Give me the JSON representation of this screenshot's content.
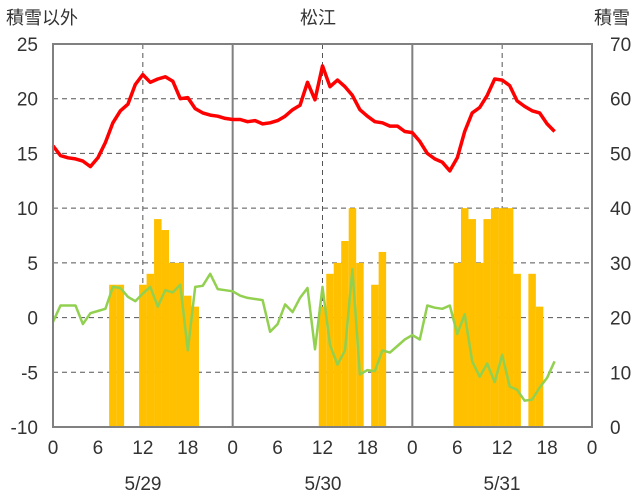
{
  "chart_data": {
    "type": "bar+line",
    "title": "松江",
    "left_axis_label": "積雪以外",
    "right_axis_label": "積雪",
    "left_ylim": [
      -10,
      25
    ],
    "left_ticks": [
      25,
      20,
      15,
      10,
      5,
      0,
      -5,
      -10
    ],
    "right_ylim": [
      0,
      70
    ],
    "right_ticks": [
      70,
      60,
      50,
      40,
      30,
      20,
      10,
      0
    ],
    "x_tick_labels": [
      "0",
      "6",
      "12",
      "18",
      "0",
      "6",
      "12",
      "18",
      "0",
      "6",
      "12",
      "18",
      "0"
    ],
    "x_hours_max": 72,
    "days": [
      "5/29",
      "5/30",
      "5/31"
    ],
    "grid": "dashed",
    "colors": {
      "red": "#ff0000",
      "green": "#92d050",
      "bars": "#ffc000",
      "frame": "#808080",
      "grid": "#555555"
    },
    "series": [
      {
        "type": "line",
        "color": "red",
        "axis": "left",
        "x": [
          0,
          1,
          2,
          3,
          4,
          5,
          6,
          7,
          8,
          9,
          10,
          11,
          12,
          13,
          14,
          15,
          16,
          17,
          18,
          19,
          20,
          21,
          22,
          23,
          24,
          25,
          26,
          27,
          28,
          29,
          30,
          31,
          32,
          33,
          34,
          35,
          36,
          37,
          38,
          39,
          40,
          41,
          42,
          43,
          44,
          45,
          46,
          47,
          48,
          49,
          50,
          51,
          52,
          53,
          54,
          55,
          56,
          57,
          58,
          59,
          60,
          61,
          62,
          63,
          64,
          65,
          66,
          67
        ],
        "y": [
          15.7,
          14.8,
          14.6,
          14.5,
          14.3,
          13.8,
          14.6,
          16.0,
          17.8,
          18.9,
          19.5,
          21.3,
          22.2,
          21.5,
          21.8,
          22.0,
          21.6,
          20.0,
          20.1,
          19.1,
          18.7,
          18.5,
          18.4,
          18.2,
          18.1,
          18.1,
          17.9,
          18.0,
          17.7,
          17.8,
          18.0,
          18.4,
          19.0,
          19.4,
          21.5,
          19.9,
          23.0,
          21.1,
          21.7,
          21.1,
          20.3,
          19.0,
          18.4,
          17.9,
          17.8,
          17.5,
          17.5,
          17.0,
          16.9,
          16.1,
          15.0,
          14.5,
          14.2,
          13.4,
          14.6,
          17.0,
          18.7,
          19.2,
          20.3,
          21.8,
          21.7,
          21.2,
          19.8,
          19.3,
          18.9,
          18.7,
          17.7,
          17.0
        ]
      },
      {
        "type": "line",
        "color": "green",
        "axis": "left",
        "x": [
          0,
          1,
          3,
          4,
          5,
          6,
          7,
          8,
          9,
          10,
          11,
          12,
          13,
          14,
          15,
          16,
          17,
          18,
          19,
          20,
          21,
          22,
          23,
          24,
          25,
          26,
          27,
          28,
          29,
          30,
          31,
          32,
          33,
          34,
          35,
          36,
          37,
          38,
          39,
          40,
          41,
          42,
          43,
          44,
          45,
          46,
          47,
          48,
          49,
          50,
          51,
          52,
          53,
          54,
          55,
          56,
          57,
          58,
          59,
          60,
          61,
          62,
          63,
          64,
          65,
          66,
          67
        ],
        "y": [
          -0.4,
          1.1,
          1.1,
          -0.6,
          0.4,
          0.6,
          0.8,
          2.8,
          2.7,
          1.9,
          1.5,
          2.2,
          2.8,
          1.0,
          2.5,
          2.3,
          3.0,
          -3.0,
          2.8,
          2.9,
          4.0,
          2.6,
          2.5,
          2.4,
          2.0,
          1.8,
          1.7,
          1.6,
          -1.3,
          -0.6,
          1.2,
          0.5,
          1.8,
          2.7,
          -2.9,
          2.8,
          -2.5,
          -4.3,
          -3.0,
          4.4,
          -5.2,
          -4.8,
          -4.9,
          -3.0,
          -3.2,
          -2.6,
          -2.0,
          -1.6,
          -2.0,
          1.1,
          0.9,
          0.8,
          1.1,
          -1.5,
          0.3,
          -4.0,
          -5.4,
          -4.2,
          -5.9,
          -3.4,
          -6.3,
          -6.6,
          -7.6,
          -7.5,
          -6.4,
          -5.5,
          -4.0
        ]
      },
      {
        "type": "bar",
        "color": "bars",
        "axis": "right",
        "x": [
          8,
          9,
          12,
          13,
          14,
          15,
          16,
          17,
          18,
          19,
          36,
          37,
          38,
          39,
          40,
          41,
          42,
          43,
          44,
          45,
          54,
          55,
          56,
          57,
          58,
          59,
          60,
          61,
          62,
          63,
          64,
          65,
          66,
          67
        ],
        "y": [
          26,
          26,
          26,
          28,
          38,
          36,
          30,
          30,
          24,
          22,
          22,
          28,
          30,
          34,
          40,
          30,
          0,
          26,
          32,
          0,
          30,
          40,
          38,
          30,
          38,
          40,
          40,
          40,
          28,
          0,
          28,
          22,
          0,
          0
        ]
      }
    ]
  }
}
